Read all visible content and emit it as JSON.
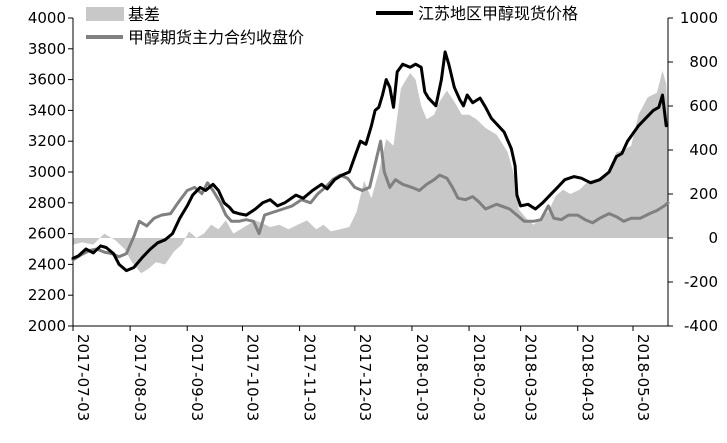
{
  "chart_data": {
    "type": "line",
    "x_ticks": [
      "2017-07-03",
      "2017-08-03",
      "2017-09-03",
      "2017-10-03",
      "2017-11-03",
      "2017-12-03",
      "2018-01-03",
      "2018-02-03",
      "2018-03-03",
      "2018-04-03",
      "2018-05-03"
    ],
    "x_range": [
      "2017-07-03",
      "2018-05-22"
    ],
    "y_left": {
      "min": 2000,
      "max": 4000,
      "ticks": [
        2000,
        2200,
        2400,
        2600,
        2800,
        3000,
        3200,
        3400,
        3600,
        3800,
        4000
      ]
    },
    "y_right": {
      "min": -400,
      "max": 1000,
      "ticks": [
        -400,
        -200,
        0,
        200,
        400,
        600,
        800,
        1000
      ]
    },
    "legend": [
      "基差",
      "江苏地区甲醇现货价格",
      "甲醇期货主力合约收盘价"
    ],
    "colors": {
      "basis": "#c8c8c8",
      "spot": "#000000",
      "futures": "#808080"
    },
    "series": [
      {
        "name": "江苏地区甲醇现货价格",
        "axis": "left",
        "points": [
          [
            "2017-07-03",
            2440
          ],
          [
            "2017-07-06",
            2455
          ],
          [
            "2017-07-10",
            2500
          ],
          [
            "2017-07-14",
            2475
          ],
          [
            "2017-07-18",
            2520
          ],
          [
            "2017-07-21",
            2510
          ],
          [
            "2017-07-25",
            2470
          ],
          [
            "2017-07-28",
            2400
          ],
          [
            "2017-08-01",
            2360
          ],
          [
            "2017-08-05",
            2380
          ],
          [
            "2017-08-10",
            2450
          ],
          [
            "2017-08-14",
            2500
          ],
          [
            "2017-08-18",
            2540
          ],
          [
            "2017-08-22",
            2560
          ],
          [
            "2017-08-26",
            2600
          ],
          [
            "2017-08-30",
            2700
          ],
          [
            "2017-09-03",
            2780
          ],
          [
            "2017-09-06",
            2850
          ],
          [
            "2017-09-10",
            2900
          ],
          [
            "2017-09-13",
            2880
          ],
          [
            "2017-09-17",
            2920
          ],
          [
            "2017-09-20",
            2880
          ],
          [
            "2017-09-23",
            2800
          ],
          [
            "2017-09-26",
            2770
          ],
          [
            "2017-09-28",
            2740
          ],
          [
            "2017-10-01",
            2730
          ],
          [
            "2017-10-05",
            2720
          ],
          [
            "2017-10-10",
            2760
          ],
          [
            "2017-10-14",
            2800
          ],
          [
            "2017-10-18",
            2820
          ],
          [
            "2017-10-22",
            2780
          ],
          [
            "2017-10-26",
            2800
          ],
          [
            "2017-11-01",
            2850
          ],
          [
            "2017-11-05",
            2830
          ],
          [
            "2017-11-10",
            2880
          ],
          [
            "2017-11-15",
            2920
          ],
          [
            "2017-11-18",
            2890
          ],
          [
            "2017-11-22",
            2950
          ],
          [
            "2017-11-26",
            2980
          ],
          [
            "2017-11-30",
            3000
          ],
          [
            "2017-12-03",
            3100
          ],
          [
            "2017-12-06",
            3200
          ],
          [
            "2017-12-09",
            3180
          ],
          [
            "2017-12-12",
            3300
          ],
          [
            "2017-12-14",
            3400
          ],
          [
            "2017-12-16",
            3420
          ],
          [
            "2017-12-18",
            3500
          ],
          [
            "2017-12-20",
            3600
          ],
          [
            "2017-12-22",
            3550
          ],
          [
            "2017-12-24",
            3420
          ],
          [
            "2017-12-26",
            3650
          ],
          [
            "2017-12-29",
            3700
          ],
          [
            "2018-01-02",
            3680
          ],
          [
            "2018-01-05",
            3700
          ],
          [
            "2018-01-08",
            3680
          ],
          [
            "2018-01-10",
            3520
          ],
          [
            "2018-01-12",
            3480
          ],
          [
            "2018-01-16",
            3430
          ],
          [
            "2018-01-19",
            3600
          ],
          [
            "2018-01-21",
            3780
          ],
          [
            "2018-01-23",
            3700
          ],
          [
            "2018-01-26",
            3550
          ],
          [
            "2018-01-29",
            3470
          ],
          [
            "2018-01-31",
            3430
          ],
          [
            "2018-02-02",
            3500
          ],
          [
            "2018-02-05",
            3450
          ],
          [
            "2018-02-09",
            3480
          ],
          [
            "2018-02-12",
            3420
          ],
          [
            "2018-02-15",
            3350
          ],
          [
            "2018-02-22",
            3260
          ],
          [
            "2018-02-26",
            3150
          ],
          [
            "2018-02-28",
            3040
          ],
          [
            "2018-03-01",
            2850
          ],
          [
            "2018-03-03",
            2780
          ],
          [
            "2018-03-07",
            2790
          ],
          [
            "2018-03-11",
            2760
          ],
          [
            "2018-03-15",
            2800
          ],
          [
            "2018-03-19",
            2850
          ],
          [
            "2018-03-23",
            2900
          ],
          [
            "2018-03-27",
            2950
          ],
          [
            "2018-04-01",
            2970
          ],
          [
            "2018-04-05",
            2960
          ],
          [
            "2018-04-10",
            2930
          ],
          [
            "2018-04-15",
            2950
          ],
          [
            "2018-04-20",
            3000
          ],
          [
            "2018-04-24",
            3100
          ],
          [
            "2018-04-27",
            3120
          ],
          [
            "2018-04-30",
            3200
          ],
          [
            "2018-05-03",
            3250
          ],
          [
            "2018-05-06",
            3300
          ],
          [
            "2018-05-10",
            3350
          ],
          [
            "2018-05-14",
            3400
          ],
          [
            "2018-05-17",
            3420
          ],
          [
            "2018-05-19",
            3500
          ],
          [
            "2018-05-21",
            3300
          ]
        ]
      },
      {
        "name": "甲醇期货主力合约收盘价",
        "axis": "left",
        "points": [
          [
            "2017-07-03",
            2430
          ],
          [
            "2017-07-07",
            2460
          ],
          [
            "2017-07-12",
            2490
          ],
          [
            "2017-07-16",
            2500
          ],
          [
            "2017-07-20",
            2480
          ],
          [
            "2017-07-24",
            2470
          ],
          [
            "2017-07-28",
            2450
          ],
          [
            "2017-08-01",
            2470
          ],
          [
            "2017-08-05",
            2580
          ],
          [
            "2017-08-08",
            2680
          ],
          [
            "2017-08-12",
            2650
          ],
          [
            "2017-08-16",
            2700
          ],
          [
            "2017-08-20",
            2720
          ],
          [
            "2017-08-25",
            2730
          ],
          [
            "2017-08-29",
            2800
          ],
          [
            "2017-09-03",
            2880
          ],
          [
            "2017-09-07",
            2900
          ],
          [
            "2017-09-11",
            2860
          ],
          [
            "2017-09-14",
            2930
          ],
          [
            "2017-09-17",
            2880
          ],
          [
            "2017-09-21",
            2800
          ],
          [
            "2017-09-24",
            2720
          ],
          [
            "2017-09-27",
            2680
          ],
          [
            "2017-10-01",
            2680
          ],
          [
            "2017-10-05",
            2690
          ],
          [
            "2017-10-09",
            2680
          ],
          [
            "2017-10-12",
            2600
          ],
          [
            "2017-10-15",
            2720
          ],
          [
            "2017-10-20",
            2740
          ],
          [
            "2017-10-25",
            2760
          ],
          [
            "2017-10-30",
            2780
          ],
          [
            "2017-11-04",
            2820
          ],
          [
            "2017-11-09",
            2800
          ],
          [
            "2017-11-13",
            2860
          ],
          [
            "2017-11-17",
            2900
          ],
          [
            "2017-11-21",
            2950
          ],
          [
            "2017-11-25",
            2980
          ],
          [
            "2017-11-29",
            2960
          ],
          [
            "2017-12-03",
            2900
          ],
          [
            "2017-12-07",
            2880
          ],
          [
            "2017-12-11",
            2900
          ],
          [
            "2017-12-15",
            3100
          ],
          [
            "2017-12-17",
            3200
          ],
          [
            "2017-12-19",
            3000
          ],
          [
            "2017-12-22",
            2900
          ],
          [
            "2017-12-25",
            2950
          ],
          [
            "2017-12-29",
            2920
          ],
          [
            "2018-01-03",
            2900
          ],
          [
            "2018-01-07",
            2880
          ],
          [
            "2018-01-11",
            2920
          ],
          [
            "2018-01-15",
            2950
          ],
          [
            "2018-01-18",
            2980
          ],
          [
            "2018-01-22",
            2960
          ],
          [
            "2018-01-25",
            2900
          ],
          [
            "2018-01-28",
            2830
          ],
          [
            "2018-02-01",
            2820
          ],
          [
            "2018-02-05",
            2840
          ],
          [
            "2018-02-08",
            2810
          ],
          [
            "2018-02-12",
            2760
          ],
          [
            "2018-02-18",
            2790
          ],
          [
            "2018-02-25",
            2760
          ],
          [
            "2018-03-01",
            2720
          ],
          [
            "2018-03-05",
            2680
          ],
          [
            "2018-03-10",
            2680
          ],
          [
            "2018-03-14",
            2690
          ],
          [
            "2018-03-18",
            2780
          ],
          [
            "2018-03-21",
            2700
          ],
          [
            "2018-03-25",
            2690
          ],
          [
            "2018-03-29",
            2720
          ],
          [
            "2018-04-03",
            2720
          ],
          [
            "2018-04-07",
            2690
          ],
          [
            "2018-04-11",
            2670
          ],
          [
            "2018-04-15",
            2700
          ],
          [
            "2018-04-20",
            2730
          ],
          [
            "2018-04-24",
            2710
          ],
          [
            "2018-04-28",
            2680
          ],
          [
            "2018-05-02",
            2700
          ],
          [
            "2018-05-07",
            2700
          ],
          [
            "2018-05-12",
            2730
          ],
          [
            "2018-05-16",
            2750
          ],
          [
            "2018-05-20",
            2780
          ],
          [
            "2018-05-22",
            2800
          ]
        ]
      },
      {
        "name": "基差",
        "axis": "right",
        "points": [
          [
            "2017-07-03",
            -30
          ],
          [
            "2017-07-08",
            -20
          ],
          [
            "2017-07-14",
            -30
          ],
          [
            "2017-07-20",
            20
          ],
          [
            "2017-07-26",
            -10
          ],
          [
            "2017-07-31",
            -50
          ],
          [
            "2017-08-04",
            -110
          ],
          [
            "2017-08-09",
            -160
          ],
          [
            "2017-08-13",
            -140
          ],
          [
            "2017-08-17",
            -110
          ],
          [
            "2017-08-22",
            -120
          ],
          [
            "2017-08-27",
            -60
          ],
          [
            "2017-08-31",
            -30
          ],
          [
            "2017-09-04",
            30
          ],
          [
            "2017-09-08",
            0
          ],
          [
            "2017-09-12",
            20
          ],
          [
            "2017-09-16",
            60
          ],
          [
            "2017-09-20",
            40
          ],
          [
            "2017-09-24",
            80
          ],
          [
            "2017-09-28",
            20
          ],
          [
            "2017-10-02",
            40
          ],
          [
            "2017-10-06",
            60
          ],
          [
            "2017-10-10",
            80
          ],
          [
            "2017-10-13",
            70
          ],
          [
            "2017-10-18",
            50
          ],
          [
            "2017-10-23",
            60
          ],
          [
            "2017-10-28",
            40
          ],
          [
            "2017-11-02",
            60
          ],
          [
            "2017-11-07",
            80
          ],
          [
            "2017-11-12",
            40
          ],
          [
            "2017-11-16",
            60
          ],
          [
            "2017-11-20",
            30
          ],
          [
            "2017-11-25",
            40
          ],
          [
            "2017-11-30",
            50
          ],
          [
            "2017-12-04",
            120
          ],
          [
            "2017-12-08",
            260
          ],
          [
            "2017-12-12",
            180
          ],
          [
            "2017-12-16",
            300
          ],
          [
            "2017-12-20",
            450
          ],
          [
            "2017-12-24",
            420
          ],
          [
            "2017-12-28",
            680
          ],
          [
            "2018-01-02",
            750
          ],
          [
            "2018-01-05",
            720
          ],
          [
            "2018-01-08",
            600
          ],
          [
            "2018-01-11",
            540
          ],
          [
            "2018-01-15",
            560
          ],
          [
            "2018-01-18",
            620
          ],
          [
            "2018-01-22",
            670
          ],
          [
            "2018-01-26",
            620
          ],
          [
            "2018-01-30",
            560
          ],
          [
            "2018-02-03",
            560
          ],
          [
            "2018-02-07",
            540
          ],
          [
            "2018-02-12",
            500
          ],
          [
            "2018-02-18",
            470
          ],
          [
            "2018-02-24",
            390
          ],
          [
            "2018-02-28",
            270
          ],
          [
            "2018-03-02",
            130
          ],
          [
            "2018-03-06",
            90
          ],
          [
            "2018-03-10",
            60
          ],
          [
            "2018-03-14",
            90
          ],
          [
            "2018-03-18",
            120
          ],
          [
            "2018-03-22",
            190
          ],
          [
            "2018-03-26",
            220
          ],
          [
            "2018-03-30",
            200
          ],
          [
            "2018-04-04",
            220
          ],
          [
            "2018-04-09",
            260
          ],
          [
            "2018-04-14",
            270
          ],
          [
            "2018-04-19",
            300
          ],
          [
            "2018-04-24",
            390
          ],
          [
            "2018-04-28",
            400
          ],
          [
            "2018-05-02",
            420
          ],
          [
            "2018-05-06",
            560
          ],
          [
            "2018-05-11",
            640
          ],
          [
            "2018-05-16",
            660
          ],
          [
            "2018-05-19",
            760
          ],
          [
            "2018-05-21",
            700
          ],
          [
            "2018-05-22",
            500
          ]
        ]
      }
    ]
  }
}
